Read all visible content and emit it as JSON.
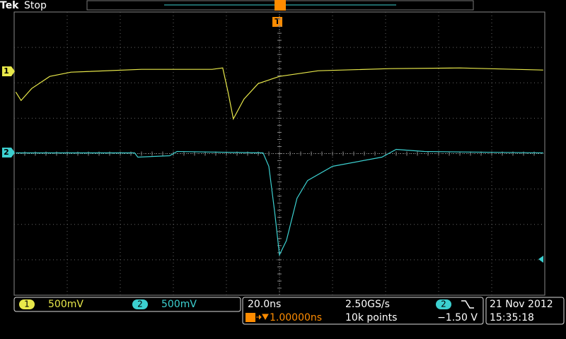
{
  "header": {
    "brand": "Tek",
    "status": "Stop"
  },
  "markers": {
    "trigger": "T",
    "channel_1": "1",
    "channel_2": "2"
  },
  "traces": [
    {
      "x": [
        0.03,
        0.13,
        0.33,
        0.67,
        1.07,
        2.4,
        3.73,
        3.93,
        4.03,
        4.13,
        4.33,
        4.6,
        5.0,
        5.73,
        7.07,
        8.4,
        9.97
      ],
      "y": [
        1.74,
        1.5,
        1.84,
        2.18,
        2.3,
        2.38,
        2.38,
        2.42,
        1.74,
        0.98,
        1.54,
        1.98,
        2.18,
        2.34,
        2.4,
        2.42,
        2.36
      ],
      "color": "#e8e84a"
    },
    {
      "x": [
        0.03,
        2.27,
        2.33,
        2.93,
        3.07,
        4.69,
        4.8,
        4.91,
        5.0,
        5.13,
        5.33,
        5.53,
        6.0,
        6.93,
        7.2,
        7.73,
        9.97
      ],
      "y": [
        0.02,
        0.02,
        -0.1,
        -0.06,
        0.06,
        0.02,
        -0.36,
        -1.66,
        -2.86,
        -2.46,
        -1.26,
        -0.76,
        -0.36,
        -0.1,
        0.12,
        0.06,
        0.02
      ],
      "color": "#3cd0d0"
    }
  ],
  "channels": [
    {
      "number": "1",
      "scale": "500mV"
    },
    {
      "number": "2",
      "scale": "500mV"
    }
  ],
  "timebase": {
    "scale": "20.0ns",
    "position": "1.00000ns",
    "sample_rate": "2.50GS/s",
    "record": "10k points"
  },
  "trigger": {
    "source": "2",
    "level": "−1.50 V"
  },
  "clock": {
    "date": "21 Nov 2012",
    "time": "15:35:18"
  }
}
